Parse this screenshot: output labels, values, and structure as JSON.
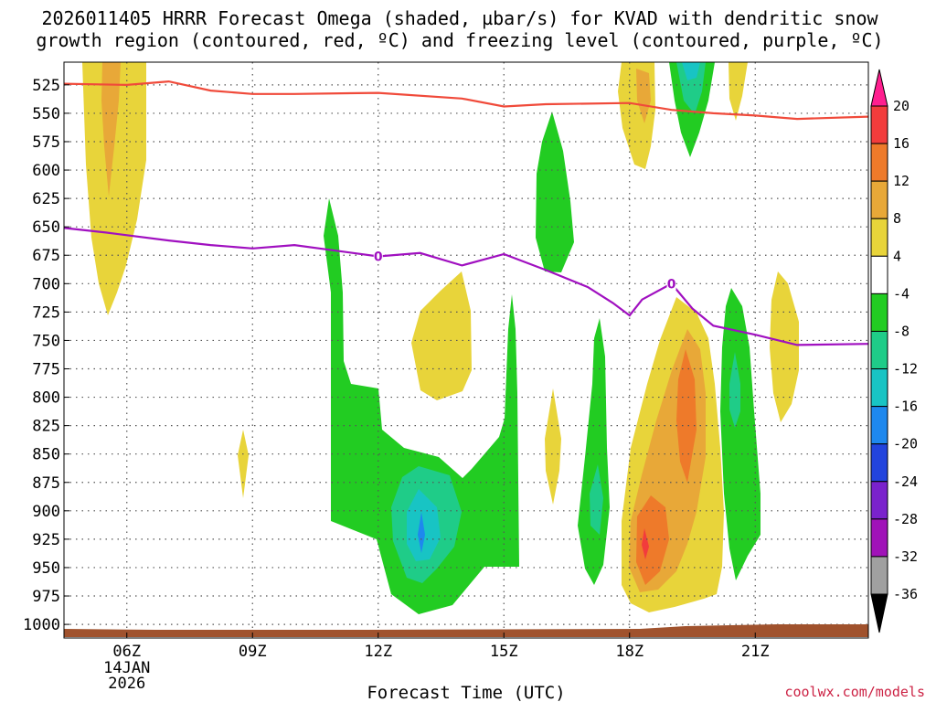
{
  "chart_data": {
    "type": "time-height cross section (shaded contours)",
    "title_line1": "2026011405 HRRR Forecast Omega (shaded, µbar/s) for KVAD with dendritic snow",
    "title_line2": "growth region (contoured, red, ºC) and freezing level (contoured, purple, ºC)",
    "xlabel": "Forecast Time (UTC)",
    "credit": "coolwx.com/models",
    "x_range_hours": [
      4.5,
      23.7
    ],
    "y_range_hPa": [
      505,
      1012
    ],
    "x_ticks": [
      {
        "hour": 6,
        "label": "06Z",
        "sub1": "14JAN",
        "sub2": "2026"
      },
      {
        "hour": 9,
        "label": "09Z",
        "sub1": "",
        "sub2": ""
      },
      {
        "hour": 12,
        "label": "12Z",
        "sub1": "",
        "sub2": ""
      },
      {
        "hour": 15,
        "label": "15Z",
        "sub1": "",
        "sub2": ""
      },
      {
        "hour": 18,
        "label": "18Z",
        "sub1": "",
        "sub2": ""
      },
      {
        "hour": 21,
        "label": "21Z",
        "sub1": "",
        "sub2": ""
      }
    ],
    "y_ticks": [
      525,
      550,
      575,
      600,
      625,
      650,
      675,
      700,
      725,
      750,
      775,
      800,
      825,
      850,
      875,
      900,
      925,
      950,
      975,
      1000
    ],
    "colorbar": {
      "units": "µbar/s",
      "labels": [
        20,
        16,
        12,
        8,
        4,
        -4,
        -8,
        -12,
        -16,
        -20,
        -24,
        -28,
        -32,
        -36
      ],
      "colors": [
        "#ff1f8f",
        "#f23c3c",
        "#ee7a2a",
        "#e8a838",
        "#e8d43a",
        "#ffffff",
        "#22cc22",
        "#1fcc88",
        "#18c4c4",
        "#1e88ee",
        "#2244dd",
        "#7a22cc",
        "#a012b8",
        "#a0a0a0",
        "#000000"
      ]
    },
    "dendritic_snow_growth_top_red": [
      {
        "h": 4.5,
        "p": 524
      },
      {
        "h": 6,
        "p": 525
      },
      {
        "h": 7,
        "p": 522
      },
      {
        "h": 8,
        "p": 530
      },
      {
        "h": 9,
        "p": 533
      },
      {
        "h": 10,
        "p": 533
      },
      {
        "h": 12,
        "p": 532
      },
      {
        "h": 14,
        "p": 537
      },
      {
        "h": 15,
        "p": 544
      },
      {
        "h": 16,
        "p": 542
      },
      {
        "h": 18,
        "p": 541
      },
      {
        "h": 19,
        "p": 547
      },
      {
        "h": 20,
        "p": 550
      },
      {
        "h": 21,
        "p": 552
      },
      {
        "h": 22,
        "p": 555
      },
      {
        "h": 23.7,
        "p": 553
      }
    ],
    "freezing_level_purple": [
      {
        "h": 4.5,
        "p": 651
      },
      {
        "h": 5.5,
        "p": 655
      },
      {
        "h": 7,
        "p": 662
      },
      {
        "h": 8,
        "p": 666
      },
      {
        "h": 9,
        "p": 669
      },
      {
        "h": 10,
        "p": 666
      },
      {
        "h": 12,
        "p": 676
      },
      {
        "h": 13,
        "p": 673
      },
      {
        "h": 14,
        "p": 684
      },
      {
        "h": 15,
        "p": 674
      },
      {
        "h": 16,
        "p": 688
      },
      {
        "h": 17,
        "p": 703
      },
      {
        "h": 17.6,
        "p": 717
      },
      {
        "h": 18,
        "p": 728
      },
      {
        "h": 18.3,
        "p": 714
      },
      {
        "h": 19,
        "p": 700
      },
      {
        "h": 19.5,
        "p": 722
      },
      {
        "h": 20,
        "p": 737
      },
      {
        "h": 21,
        "p": 745
      },
      {
        "h": 22,
        "p": 754
      },
      {
        "h": 23.7,
        "p": 753
      }
    ],
    "contour_labels": [
      {
        "text": "0",
        "h": 12,
        "p": 676,
        "color": "#a010c0"
      },
      {
        "text": "0",
        "h": 19,
        "p": 700,
        "color": "#a010c0"
      }
    ],
    "terrain_color": "#a0522d"
  }
}
